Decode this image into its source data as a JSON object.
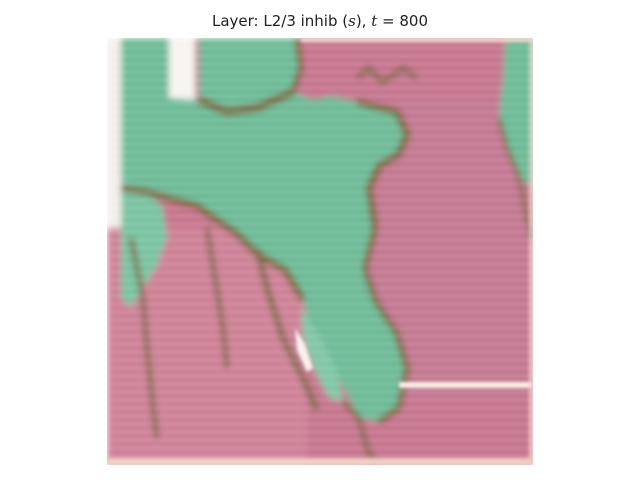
{
  "figure": {
    "title_prefix": "Layer: L2/3 inhib (",
    "title_var_s": "s",
    "title_mid": "), ",
    "title_var_t": "t",
    "title_suffix": " = 800",
    "colors": {
      "pink": "#c9758f",
      "pink_light": "#d78fa3",
      "green": "#6fbf9c",
      "green_light": "#86cfae",
      "brown": "#7c6a3f",
      "white": "#f7f2ef",
      "peach": "#f3cdbf"
    }
  }
}
